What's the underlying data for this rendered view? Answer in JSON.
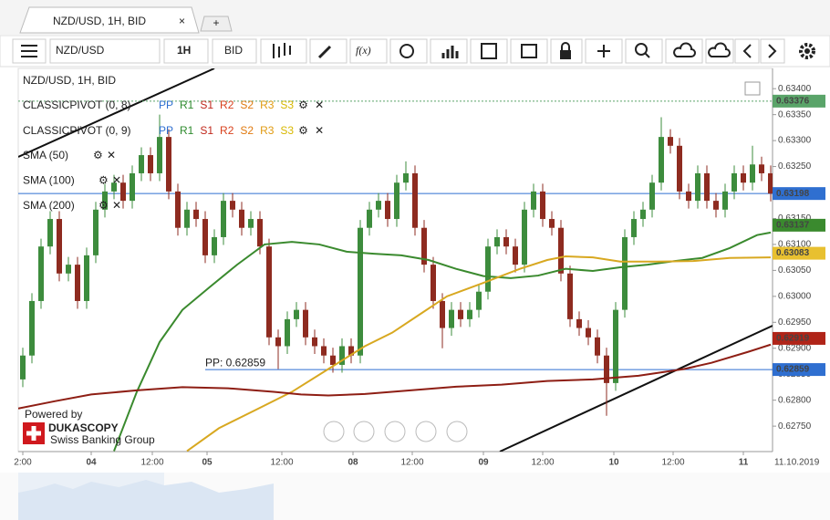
{
  "tabs": {
    "active": "NZD/USD, 1H, BID",
    "add": "+"
  },
  "toolbar": {
    "instrument": "NZD/USD",
    "period": "1H",
    "side": "BID",
    "fx": "f(x)"
  },
  "legend": {
    "title": "NZD/USD, 1H, BID",
    "pivots": [
      {
        "name": "CLASSICPIVOT (0, 8)",
        "levels": [
          "PP",
          "R1",
          "S1",
          "R2",
          "S2",
          "R3",
          "S3"
        ]
      },
      {
        "name": "CLASSICPIVOT (0, 9)",
        "levels": [
          "PP",
          "R1",
          "S1",
          "R2",
          "S2",
          "R3",
          "S3"
        ]
      }
    ]
  },
  "branding": {
    "powered": "Powered by",
    "brand": "DUKASCOPY",
    "sub": "Swiss Banking Group"
  },
  "chart_data": {
    "type": "candlestick",
    "up_color": "#3d8c3d",
    "down_color": "#8e2b20",
    "x": [
      0,
      1,
      2,
      3,
      4,
      5,
      6,
      7,
      8,
      9,
      10,
      11,
      12,
      13,
      14,
      15,
      16,
      17,
      18,
      19,
      20,
      21,
      22,
      23,
      24,
      25,
      26,
      27,
      28,
      29,
      30,
      31,
      32,
      33,
      34,
      35,
      36,
      37,
      38,
      39,
      40,
      41,
      42,
      43,
      44,
      45,
      46,
      47,
      48,
      49,
      50,
      51,
      52,
      53,
      54,
      55,
      56,
      57,
      58,
      59,
      60,
      61,
      62,
      63,
      64,
      65,
      66,
      67,
      68,
      69,
      70,
      71,
      72,
      73,
      74,
      75,
      76,
      77,
      78,
      79,
      80,
      81,
      82
    ],
    "open": [
      0.6284,
      0.62886,
      0.62991,
      0.63096,
      0.63149,
      0.63044,
      0.63061,
      0.62991,
      0.63079,
      0.63167,
      0.63202,
      0.63219,
      0.63184,
      0.63237,
      0.63272,
      0.63237,
      0.63307,
      0.63202,
      0.63132,
      0.63167,
      0.63149,
      0.63079,
      0.63114,
      0.63184,
      0.63167,
      0.63132,
      0.63149,
      0.63096,
      0.62921,
      0.62904,
      0.62956,
      0.62974,
      0.62921,
      0.62904,
      0.62886,
      0.62868,
      0.62904,
      0.62886,
      0.63132,
      0.63167,
      0.63184,
      0.63149,
      0.63219,
      0.63237,
      0.63132,
      0.63061,
      0.62991,
      0.62939,
      0.62974,
      0.62956,
      0.62974,
      0.63009,
      0.63096,
      0.63114,
      0.63096,
      0.63061,
      0.63167,
      0.63202,
      0.63149,
      0.63132,
      0.63044,
      0.62956,
      0.62939,
      0.62921,
      0.62886,
      0.62833,
      0.62974,
      0.63114,
      0.63149,
      0.63167,
      0.63219,
      0.63307,
      0.6329,
      0.63202,
      0.63184,
      0.63237,
      0.63184,
      0.63167,
      0.63202,
      0.63237,
      0.63219,
      0.63254,
      0.63237
    ],
    "high": [
      0.62901,
      0.63006,
      0.63111,
      0.63164,
      0.63164,
      0.63076,
      0.63076,
      0.63094,
      0.63182,
      0.63217,
      0.63234,
      0.63234,
      0.63252,
      0.63287,
      0.63287,
      0.6335,
      0.63322,
      0.63217,
      0.63182,
      0.63182,
      0.63164,
      0.63129,
      0.63199,
      0.63199,
      0.63182,
      0.63164,
      0.63164,
      0.63111,
      0.62936,
      0.62971,
      0.62989,
      0.62989,
      0.62936,
      0.62919,
      0.62901,
      0.62919,
      0.62919,
      0.63147,
      0.63182,
      0.63199,
      0.63199,
      0.63234,
      0.6326,
      0.63252,
      0.63147,
      0.63076,
      0.63006,
      0.62989,
      0.62989,
      0.62989,
      0.63024,
      0.63111,
      0.63129,
      0.63129,
      0.63111,
      0.63182,
      0.63217,
      0.63217,
      0.63164,
      0.63147,
      0.63059,
      0.62971,
      0.62954,
      0.62936,
      0.62901,
      0.62989,
      0.63129,
      0.63164,
      0.63182,
      0.63234,
      0.63345,
      0.63322,
      0.63305,
      0.63217,
      0.63252,
      0.63252,
      0.63199,
      0.63217,
      0.63252,
      0.63252,
      0.6329,
      0.63269,
      0.63252
    ],
    "low": [
      0.62825,
      0.62871,
      0.62976,
      0.63081,
      0.63029,
      0.63029,
      0.62976,
      0.62976,
      0.63064,
      0.63152,
      0.63187,
      0.63169,
      0.63169,
      0.63222,
      0.63222,
      0.63222,
      0.63187,
      0.63117,
      0.63117,
      0.63134,
      0.63064,
      0.63064,
      0.63099,
      0.63152,
      0.63117,
      0.63117,
      0.63081,
      0.62906,
      0.6286,
      0.62889,
      0.62941,
      0.62906,
      0.62889,
      0.62871,
      0.62853,
      0.62853,
      0.62871,
      0.62871,
      0.63117,
      0.63152,
      0.63134,
      0.63134,
      0.63204,
      0.63117,
      0.63046,
      0.62976,
      0.629,
      0.62924,
      0.62941,
      0.62941,
      0.62959,
      0.62994,
      0.63081,
      0.63081,
      0.63046,
      0.63046,
      0.63152,
      0.63134,
      0.63117,
      0.63029,
      0.62941,
      0.62924,
      0.62906,
      0.62871,
      0.6277,
      0.62818,
      0.62959,
      0.63099,
      0.63134,
      0.63152,
      0.63204,
      0.63275,
      0.63187,
      0.63169,
      0.63169,
      0.63169,
      0.63152,
      0.63152,
      0.63187,
      0.63204,
      0.63204,
      0.63222,
      0.63183
    ],
    "close": [
      0.62886,
      0.62991,
      0.63096,
      0.63149,
      0.63044,
      0.63061,
      0.62991,
      0.63079,
      0.63167,
      0.63202,
      0.63219,
      0.63184,
      0.63237,
      0.63272,
      0.63237,
      0.63307,
      0.63202,
      0.63132,
      0.63167,
      0.63149,
      0.63079,
      0.63114,
      0.63184,
      0.63167,
      0.63132,
      0.63149,
      0.63096,
      0.62921,
      0.62904,
      0.62956,
      0.62974,
      0.62921,
      0.62904,
      0.62886,
      0.62868,
      0.62904,
      0.62886,
      0.63132,
      0.63167,
      0.63184,
      0.63149,
      0.63219,
      0.63237,
      0.63132,
      0.63061,
      0.62991,
      0.62939,
      0.62974,
      0.62956,
      0.62974,
      0.63009,
      0.63096,
      0.63114,
      0.63096,
      0.63061,
      0.63167,
      0.63202,
      0.63149,
      0.63132,
      0.63044,
      0.62956,
      0.62939,
      0.62921,
      0.62886,
      0.62833,
      0.62974,
      0.63114,
      0.63149,
      0.63167,
      0.63219,
      0.63307,
      0.6329,
      0.63202,
      0.63184,
      0.63237,
      0.63184,
      0.63167,
      0.63202,
      0.63237,
      0.63219,
      0.63254,
      0.63237,
      0.63198
    ],
    "lines": [
      {
        "name": "SMA (50)",
        "color": "#3a8a2e",
        "x": [
          10,
          12.5,
          15,
          17.5,
          20.5,
          23.5,
          26.5,
          29.5,
          32.5,
          35.5,
          38.5,
          41.5,
          44.5,
          47.5,
          50.5,
          53.5,
          56.5,
          59.5,
          62.5,
          65.5,
          68.5,
          71.5,
          74.5,
          77.5,
          80.5,
          82
        ],
        "values": [
          0.62702,
          0.62816,
          0.62912,
          0.62974,
          0.63018,
          0.63061,
          0.631,
          0.63105,
          0.631,
          0.63086,
          0.63082,
          0.63079,
          0.6307,
          0.63053,
          0.63039,
          0.63035,
          0.6304,
          0.63053,
          0.63049,
          0.63056,
          0.63061,
          0.63068,
          0.63074,
          0.63093,
          0.63118,
          0.63123
        ]
      },
      {
        "name": "SMA (100)",
        "color": "#d8a820",
        "x": [
          18,
          21.5,
          25.5,
          29.5,
          33.5,
          37.5,
          40.5,
          43.5,
          46.5,
          50.5,
          54.5,
          57.5,
          59.5,
          62.5,
          65.5,
          69.5,
          73.5,
          77.5,
          82
        ],
        "values": [
          0.62702,
          0.62746,
          0.62781,
          0.62816,
          0.6286,
          0.62904,
          0.6293,
          0.62965,
          0.63,
          0.63026,
          0.63053,
          0.6307,
          0.63077,
          0.63075,
          0.63067,
          0.63067,
          0.63068,
          0.63074,
          0.63075
        ]
      },
      {
        "name": "SMA (200)",
        "color": "#8e1e14",
        "x": [
          -0.5,
          3.5,
          7.5,
          12.5,
          17.5,
          22.5,
          27.5,
          30.5,
          33.5,
          37.5,
          42.5,
          47.5,
          52.5,
          57.5,
          62.5,
          67.5,
          72.5,
          75.5,
          79.5,
          82
        ],
        "values": [
          0.62784,
          0.62798,
          0.62811,
          0.62819,
          0.62825,
          0.62823,
          0.62816,
          0.62811,
          0.62809,
          0.62812,
          0.62819,
          0.62826,
          0.6283,
          0.62837,
          0.6284,
          0.62847,
          0.6286,
          0.62872,
          0.62893,
          0.62907
        ]
      }
    ],
    "pivot": {
      "label": "PP: 0.62859",
      "value": 0.62859
    },
    "price_markers": [
      {
        "label": "0.63376",
        "value": 0.63376,
        "color": "#5aa469",
        "text_color": "#ffffff",
        "line": "dashed"
      },
      {
        "label": "0.63198",
        "value": 0.63198,
        "color": "#2f6fd0",
        "text_color": "#ffffff",
        "line": "solid"
      },
      {
        "label": "0.63137",
        "value": 0.63137,
        "color": "#3a8a2e",
        "text_color": "#ffffff"
      },
      {
        "label": "0.63083",
        "value": 0.63083,
        "color": "#e8c030",
        "text_color": "#222222"
      },
      {
        "label": "0.62919",
        "value": 0.62919,
        "color": "#b02418",
        "text_color": "#ffffff"
      },
      {
        "label": "0.62859",
        "value": 0.62859,
        "color": "#2f6fd0",
        "text_color": "#ffffff"
      }
    ],
    "date_label": "11.10.2019",
    "xlim": [
      -0.5,
      82.2
    ],
    "xticks": [
      {
        "value": 0,
        "label": "2:00"
      },
      {
        "value": 7.5,
        "label": "04"
      },
      {
        "value": 14.2,
        "label": "12:00"
      },
      {
        "value": 20.2,
        "label": "05"
      },
      {
        "value": 28.4,
        "label": "12:00"
      },
      {
        "value": 36.2,
        "label": "08"
      },
      {
        "value": 42.7,
        "label": "12:00"
      },
      {
        "value": 50.5,
        "label": "09"
      },
      {
        "value": 57,
        "label": "12:00"
      },
      {
        "value": 64.8,
        "label": "10"
      },
      {
        "value": 71.3,
        "label": "12:00"
      },
      {
        "value": 79,
        "label": "11"
      }
    ],
    "ylim": [
      0.62701,
      0.63439
    ],
    "yticks": [
      {
        "value": 0.6275,
        "label": "0.62750"
      },
      {
        "value": 0.628,
        "label": "0.62800"
      },
      {
        "value": 0.6285,
        "label": "0.62850"
      },
      {
        "value": 0.629,
        "label": "0.62900"
      },
      {
        "value": 0.6295,
        "label": "0.62950"
      },
      {
        "value": 0.63,
        "label": "0.63000"
      },
      {
        "value": 0.6305,
        "label": "0.63050"
      },
      {
        "value": 0.631,
        "label": "0.63100"
      },
      {
        "value": 0.6315,
        "label": "0.63150"
      },
      {
        "value": 0.632,
        "label": "0.63200"
      },
      {
        "value": 0.6325,
        "label": "0.63250"
      },
      {
        "value": 0.633,
        "label": "0.63300"
      },
      {
        "value": 0.6335,
        "label": "0.63350"
      },
      {
        "value": 0.634,
        "label": "0.63400"
      }
    ],
    "grid": false
  }
}
